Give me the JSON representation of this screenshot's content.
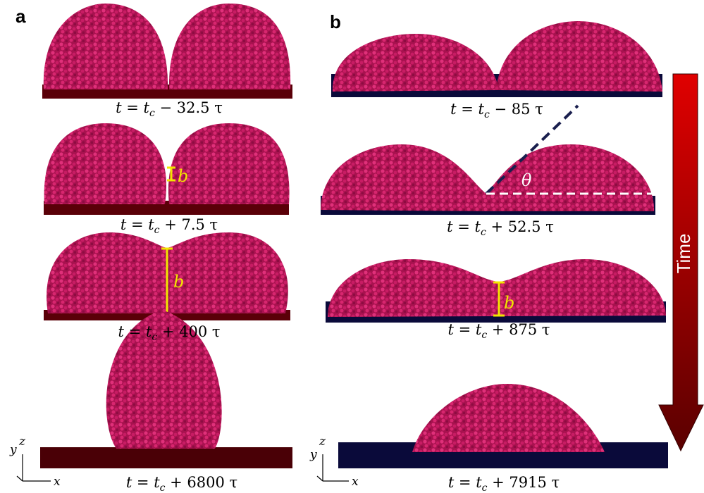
{
  "panels": [
    {
      "label": "a",
      "captions": [
        {
          "lhs": "t = t",
          "sub": "c",
          "rest": " − 32.5 τ"
        },
        {
          "lhs": "t = t",
          "sub": "c",
          "rest": " + 7.5 τ"
        },
        {
          "lhs": "t = t",
          "sub": "c",
          "rest": " + 400 τ"
        },
        {
          "lhs": "t = t",
          "sub": "c",
          "rest": " + 6800 τ"
        }
      ],
      "bridge_labels": [
        "b",
        "b"
      ],
      "axes": {
        "x": "x",
        "y": "y",
        "z": "z"
      }
    },
    {
      "label": "b",
      "captions": [
        {
          "lhs": "t = t",
          "sub": "c",
          "rest": " − 85 τ"
        },
        {
          "lhs": "t = t",
          "sub": "c",
          "rest": " + 52.5 τ"
        },
        {
          "lhs": "t = t",
          "sub": "c",
          "rest": " + 875 τ"
        },
        {
          "lhs": "t = t",
          "sub": "c",
          "rest": " + 7915 τ"
        }
      ],
      "angle_label": "θ",
      "bridge_labels": [
        "b"
      ],
      "axes": {
        "x": "x",
        "y": "y",
        "z": "z"
      }
    }
  ],
  "time_arrow": "Time"
}
